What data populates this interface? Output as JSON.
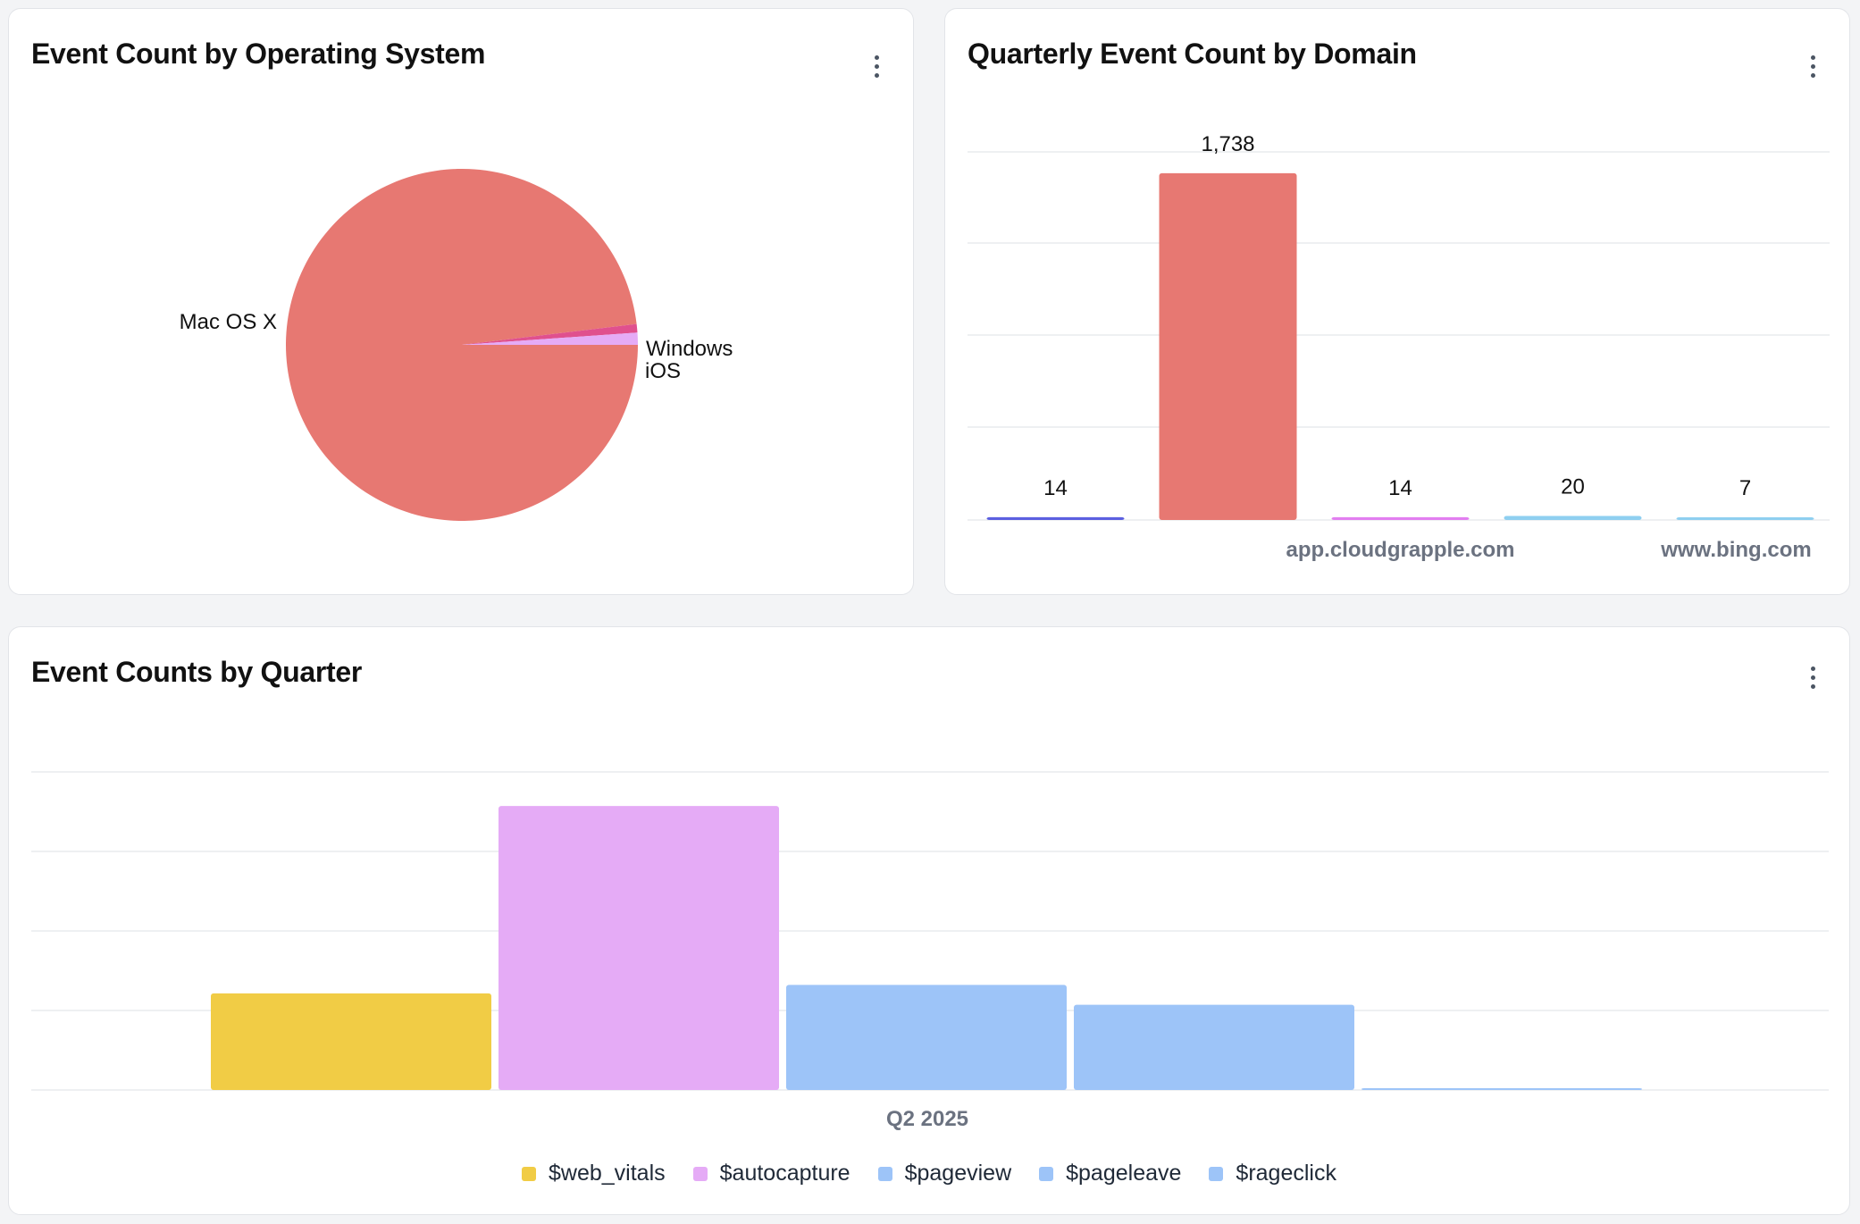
{
  "cards": {
    "os": {
      "title": "Event Count by Operating System"
    },
    "domain": {
      "title": "Quarterly Event Count by Domain"
    },
    "quarter": {
      "title": "Event Counts by Quarter"
    }
  },
  "chart_data": [
    {
      "id": "os",
      "type": "pie",
      "title": "Event Count by Operating System",
      "labels": [
        "Mac OS X",
        "Windows",
        "iOS"
      ],
      "values": [
        1760,
        14,
        20
      ],
      "colors": [
        "#e77872",
        "#e0508e",
        "#e5abf6"
      ],
      "start_angle_deg": 0
    },
    {
      "id": "domain",
      "type": "bar",
      "title": "Quarterly Event Count by Domain",
      "categories": [
        "",
        "",
        "app.cloudgrapple.com",
        "",
        "www.bing.com"
      ],
      "values": [
        14,
        1738,
        14,
        20,
        7
      ],
      "value_labels": [
        "14",
        "1,738",
        "14",
        "20",
        "7"
      ],
      "colors": [
        "#5b5fe0",
        "#e77872",
        "#e27ef0",
        "#8ecff0",
        "#8ecff0"
      ],
      "ylim": [
        0,
        1800
      ],
      "grid": true
    },
    {
      "id": "quarter",
      "type": "bar",
      "title": "Event Counts by Quarter",
      "categories": [
        "Q2 2025"
      ],
      "series": [
        {
          "name": "$web_vitals",
          "values": [
            340
          ],
          "color": "#f1cc45"
        },
        {
          "name": "$autocapture",
          "values": [
            1000
          ],
          "color": "#e5abf6"
        },
        {
          "name": "$pageview",
          "values": [
            370
          ],
          "color": "#9dc4f8"
        },
        {
          "name": "$pageleave",
          "values": [
            300
          ],
          "color": "#9dc4f8"
        },
        {
          "name": "$rageclick",
          "values": [
            4
          ],
          "color": "#9dc4f8"
        }
      ],
      "ylim": [
        0,
        1120
      ],
      "grid": true,
      "legend": "bottom"
    }
  ]
}
